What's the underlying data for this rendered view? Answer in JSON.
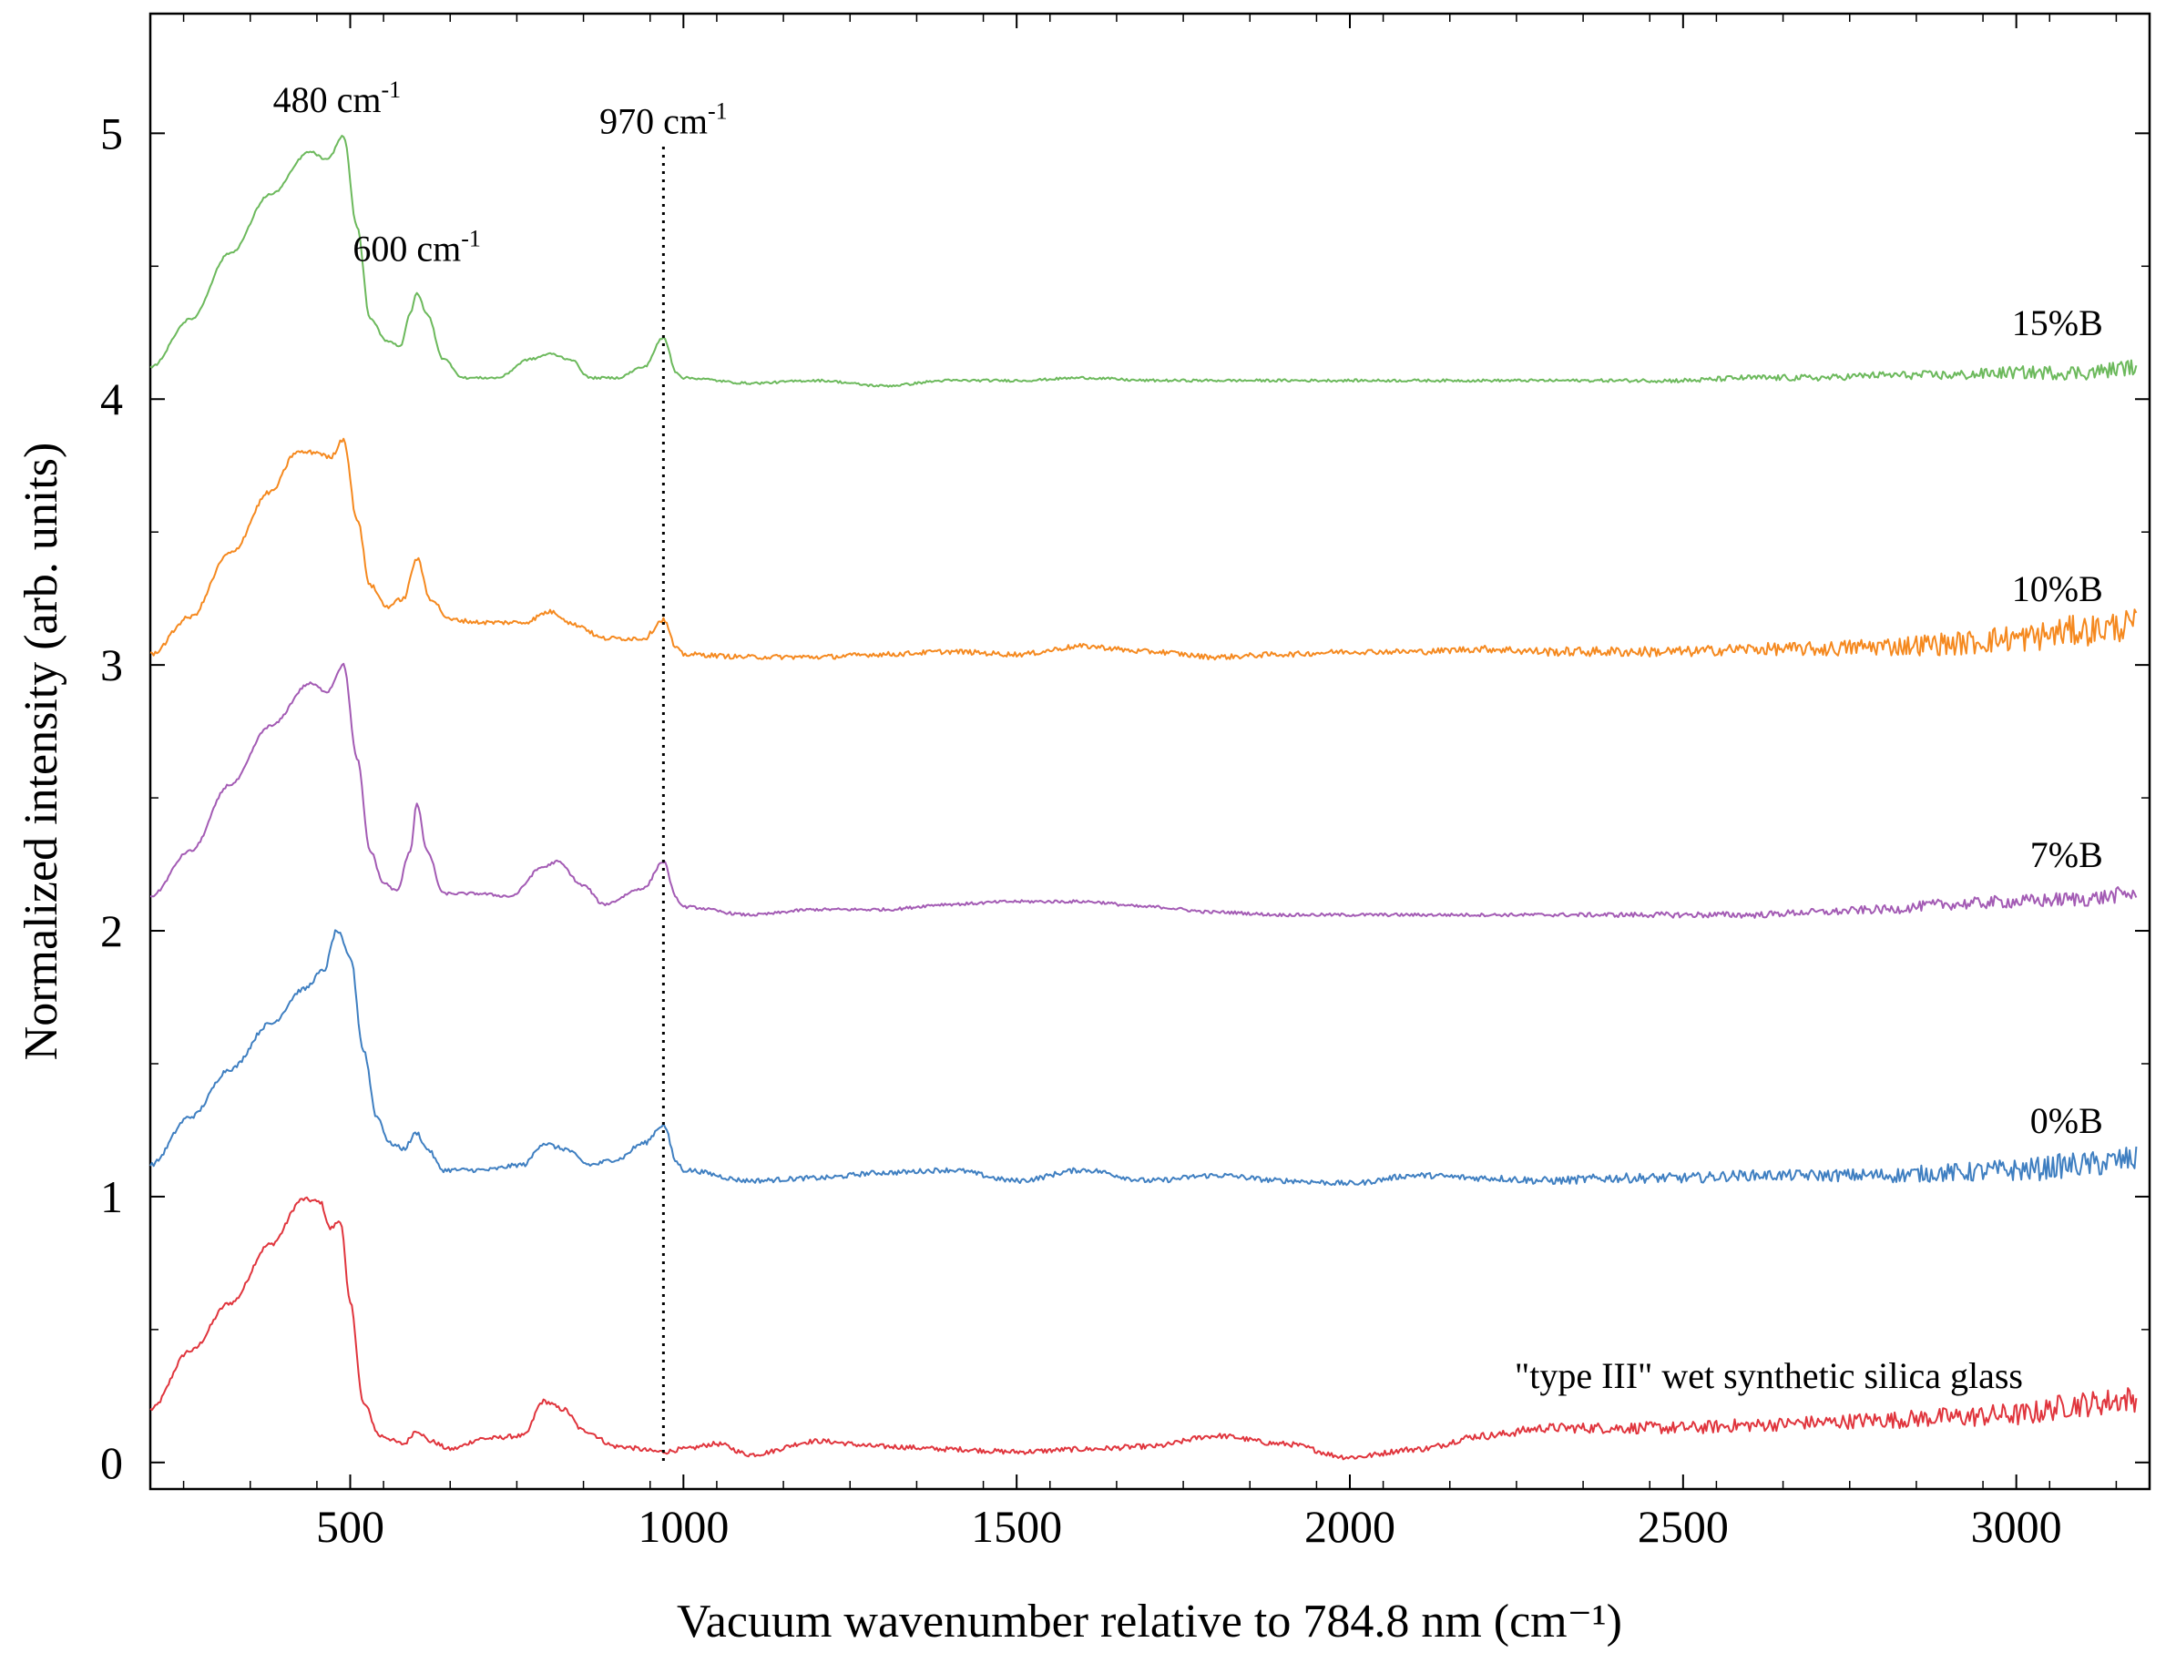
{
  "chart_data": {
    "type": "line",
    "title": "",
    "xlabel": "Vacuum wavenumber relative to 784.8 nm (cm⁻¹)",
    "ylabel": "Normalized intensity (arb. units)",
    "xlim": [
      200,
      3200
    ],
    "ylim": [
      -0.1,
      5.45
    ],
    "xticks": [
      500,
      1000,
      1500,
      2000,
      2500,
      3000
    ],
    "yticks": [
      0,
      1,
      2,
      3,
      4,
      5
    ],
    "xtick_labels": [
      "500",
      "1000",
      "1500",
      "2000",
      "2500",
      "3000"
    ],
    "ytick_labels": [
      "0",
      "1",
      "2",
      "3",
      "4",
      "5"
    ],
    "grid": false,
    "reference_line": {
      "x": 970,
      "style": "dotted",
      "y_range": [
        0.0,
        4.95
      ]
    },
    "annotations": [
      {
        "text": "480 cm",
        "sup": "-1",
        "x": 480,
        "y": 5.08
      },
      {
        "text": "600 cm",
        "sup": "-1",
        "x": 600,
        "y": 4.52
      },
      {
        "text": "970 cm",
        "sup": "-1",
        "x": 970,
        "y": 5.0
      }
    ],
    "series": [
      {
        "name": "\"type III\" wet synthetic silica glass",
        "color": "#e0353d",
        "offset": 0,
        "noise": [
          [
            200,
            0.008
          ],
          [
            2000,
            0.01
          ],
          [
            2600,
            0.025
          ],
          [
            3200,
            0.05
          ]
        ],
        "points": [
          [
            200,
            0.2
          ],
          [
            260,
            0.42
          ],
          [
            320,
            0.6
          ],
          [
            380,
            0.82
          ],
          [
            430,
            0.99
          ],
          [
            455,
            0.98
          ],
          [
            470,
            0.88
          ],
          [
            485,
            0.91
          ],
          [
            500,
            0.6
          ],
          [
            520,
            0.22
          ],
          [
            545,
            0.1
          ],
          [
            580,
            0.07
          ],
          [
            600,
            0.12
          ],
          [
            620,
            0.08
          ],
          [
            650,
            0.05
          ],
          [
            700,
            0.09
          ],
          [
            760,
            0.1
          ],
          [
            790,
            0.23
          ],
          [
            820,
            0.2
          ],
          [
            850,
            0.12
          ],
          [
            900,
            0.06
          ],
          [
            970,
            0.04
          ],
          [
            1000,
            0.05
          ],
          [
            1050,
            0.07
          ],
          [
            1100,
            0.03
          ],
          [
            1200,
            0.08
          ],
          [
            1300,
            0.06
          ],
          [
            1400,
            0.05
          ],
          [
            1500,
            0.04
          ],
          [
            1600,
            0.05
          ],
          [
            1700,
            0.06
          ],
          [
            1800,
            0.1
          ],
          [
            1900,
            0.07
          ],
          [
            2000,
            0.02
          ],
          [
            2100,
            0.05
          ],
          [
            2200,
            0.1
          ],
          [
            2300,
            0.13
          ],
          [
            2400,
            0.13
          ],
          [
            2500,
            0.13
          ],
          [
            2600,
            0.14
          ],
          [
            2700,
            0.15
          ],
          [
            2800,
            0.16
          ],
          [
            2900,
            0.17
          ],
          [
            3000,
            0.18
          ],
          [
            3100,
            0.22
          ],
          [
            3180,
            0.24
          ]
        ]
      },
      {
        "name": "0%B",
        "color": "#3f7fc1",
        "offset": 1,
        "noise": [
          [
            200,
            0.008
          ],
          [
            2000,
            0.01
          ],
          [
            2600,
            0.02
          ],
          [
            3200,
            0.05
          ]
        ],
        "points": [
          [
            200,
            0.12
          ],
          [
            260,
            0.3
          ],
          [
            320,
            0.48
          ],
          [
            380,
            0.65
          ],
          [
            430,
            0.78
          ],
          [
            460,
            0.85
          ],
          [
            480,
            1.0
          ],
          [
            500,
            0.9
          ],
          [
            520,
            0.55
          ],
          [
            540,
            0.3
          ],
          [
            560,
            0.2
          ],
          [
            580,
            0.18
          ],
          [
            600,
            0.24
          ],
          [
            615,
            0.18
          ],
          [
            640,
            0.1
          ],
          [
            700,
            0.1
          ],
          [
            760,
            0.12
          ],
          [
            790,
            0.2
          ],
          [
            820,
            0.18
          ],
          [
            860,
            0.12
          ],
          [
            900,
            0.14
          ],
          [
            940,
            0.2
          ],
          [
            970,
            0.27
          ],
          [
            990,
            0.13
          ],
          [
            1000,
            0.1
          ],
          [
            1100,
            0.06
          ],
          [
            1200,
            0.07
          ],
          [
            1300,
            0.09
          ],
          [
            1400,
            0.1
          ],
          [
            1500,
            0.06
          ],
          [
            1600,
            0.1
          ],
          [
            1700,
            0.06
          ],
          [
            1800,
            0.08
          ],
          [
            1900,
            0.06
          ],
          [
            2000,
            0.05
          ],
          [
            2100,
            0.08
          ],
          [
            2200,
            0.07
          ],
          [
            2300,
            0.06
          ],
          [
            2400,
            0.07
          ],
          [
            2500,
            0.07
          ],
          [
            2600,
            0.08
          ],
          [
            2700,
            0.08
          ],
          [
            2800,
            0.08
          ],
          [
            2900,
            0.09
          ],
          [
            3000,
            0.1
          ],
          [
            3100,
            0.12
          ],
          [
            3180,
            0.14
          ]
        ]
      },
      {
        "name": "7%B",
        "color": "#a35bb4",
        "offset": 2,
        "noise": [
          [
            200,
            0.005
          ],
          [
            2200,
            0.006
          ],
          [
            2600,
            0.012
          ],
          [
            3200,
            0.03
          ]
        ],
        "points": [
          [
            200,
            0.13
          ],
          [
            260,
            0.3
          ],
          [
            320,
            0.55
          ],
          [
            380,
            0.77
          ],
          [
            440,
            0.93
          ],
          [
            465,
            0.9
          ],
          [
            490,
            1.0
          ],
          [
            510,
            0.65
          ],
          [
            530,
            0.3
          ],
          [
            550,
            0.18
          ],
          [
            570,
            0.15
          ],
          [
            590,
            0.3
          ],
          [
            600,
            0.48
          ],
          [
            615,
            0.3
          ],
          [
            640,
            0.14
          ],
          [
            690,
            0.14
          ],
          [
            740,
            0.13
          ],
          [
            790,
            0.24
          ],
          [
            810,
            0.26
          ],
          [
            850,
            0.17
          ],
          [
            880,
            0.1
          ],
          [
            940,
            0.16
          ],
          [
            970,
            0.26
          ],
          [
            990,
            0.12
          ],
          [
            1000,
            0.09
          ],
          [
            1100,
            0.06
          ],
          [
            1200,
            0.08
          ],
          [
            1300,
            0.08
          ],
          [
            1400,
            0.1
          ],
          [
            1500,
            0.11
          ],
          [
            1600,
            0.11
          ],
          [
            1700,
            0.09
          ],
          [
            1800,
            0.07
          ],
          [
            1900,
            0.06
          ],
          [
            2000,
            0.06
          ],
          [
            2100,
            0.06
          ],
          [
            2200,
            0.06
          ],
          [
            2300,
            0.06
          ],
          [
            2400,
            0.06
          ],
          [
            2500,
            0.06
          ],
          [
            2600,
            0.06
          ],
          [
            2700,
            0.07
          ],
          [
            2800,
            0.08
          ],
          [
            2900,
            0.1
          ],
          [
            3000,
            0.11
          ],
          [
            3100,
            0.12
          ],
          [
            3180,
            0.14
          ]
        ]
      },
      {
        "name": "10%B",
        "color": "#f5891f",
        "offset": 3,
        "noise": [
          [
            200,
            0.008
          ],
          [
            2000,
            0.01
          ],
          [
            2500,
            0.02
          ],
          [
            3200,
            0.06
          ]
        ],
        "points": [
          [
            200,
            0.04
          ],
          [
            260,
            0.18
          ],
          [
            320,
            0.42
          ],
          [
            380,
            0.65
          ],
          [
            420,
            0.8
          ],
          [
            450,
            0.8
          ],
          [
            470,
            0.78
          ],
          [
            490,
            0.85
          ],
          [
            510,
            0.55
          ],
          [
            530,
            0.3
          ],
          [
            555,
            0.22
          ],
          [
            580,
            0.25
          ],
          [
            600,
            0.4
          ],
          [
            620,
            0.25
          ],
          [
            650,
            0.17
          ],
          [
            700,
            0.16
          ],
          [
            760,
            0.16
          ],
          [
            800,
            0.2
          ],
          [
            840,
            0.15
          ],
          [
            880,
            0.1
          ],
          [
            940,
            0.1
          ],
          [
            970,
            0.17
          ],
          [
            990,
            0.06
          ],
          [
            1000,
            0.04
          ],
          [
            1100,
            0.03
          ],
          [
            1200,
            0.03
          ],
          [
            1300,
            0.04
          ],
          [
            1400,
            0.05
          ],
          [
            1500,
            0.04
          ],
          [
            1600,
            0.07
          ],
          [
            1700,
            0.05
          ],
          [
            1800,
            0.03
          ],
          [
            1900,
            0.04
          ],
          [
            2000,
            0.05
          ],
          [
            2100,
            0.05
          ],
          [
            2200,
            0.06
          ],
          [
            2300,
            0.05
          ],
          [
            2400,
            0.05
          ],
          [
            2500,
            0.05
          ],
          [
            2600,
            0.06
          ],
          [
            2700,
            0.06
          ],
          [
            2800,
            0.07
          ],
          [
            2900,
            0.08
          ],
          [
            3000,
            0.1
          ],
          [
            3100,
            0.13
          ],
          [
            3180,
            0.15
          ]
        ]
      },
      {
        "name": "15%B",
        "color": "#6cb95c",
        "offset": 4,
        "noise": [
          [
            200,
            0.004
          ],
          [
            2300,
            0.005
          ],
          [
            2700,
            0.012
          ],
          [
            3200,
            0.03
          ]
        ],
        "points": [
          [
            200,
            0.12
          ],
          [
            260,
            0.3
          ],
          [
            320,
            0.55
          ],
          [
            380,
            0.77
          ],
          [
            440,
            0.93
          ],
          [
            465,
            0.9
          ],
          [
            490,
            0.99
          ],
          [
            510,
            0.65
          ],
          [
            530,
            0.3
          ],
          [
            555,
            0.22
          ],
          [
            575,
            0.2
          ],
          [
            590,
            0.32
          ],
          [
            600,
            0.4
          ],
          [
            615,
            0.32
          ],
          [
            640,
            0.15
          ],
          [
            670,
            0.08
          ],
          [
            720,
            0.08
          ],
          [
            770,
            0.15
          ],
          [
            800,
            0.17
          ],
          [
            830,
            0.15
          ],
          [
            860,
            0.08
          ],
          [
            900,
            0.08
          ],
          [
            940,
            0.12
          ],
          [
            970,
            0.23
          ],
          [
            990,
            0.1
          ],
          [
            1000,
            0.08
          ],
          [
            1100,
            0.06
          ],
          [
            1200,
            0.07
          ],
          [
            1300,
            0.05
          ],
          [
            1400,
            0.07
          ],
          [
            1500,
            0.07
          ],
          [
            1600,
            0.08
          ],
          [
            1700,
            0.07
          ],
          [
            1800,
            0.07
          ],
          [
            1900,
            0.07
          ],
          [
            2000,
            0.07
          ],
          [
            2100,
            0.07
          ],
          [
            2200,
            0.07
          ],
          [
            2300,
            0.07
          ],
          [
            2400,
            0.07
          ],
          [
            2500,
            0.07
          ],
          [
            2600,
            0.08
          ],
          [
            2700,
            0.08
          ],
          [
            2800,
            0.09
          ],
          [
            2900,
            0.09
          ],
          [
            3000,
            0.1
          ],
          [
            3100,
            0.1
          ],
          [
            3180,
            0.12
          ]
        ]
      }
    ],
    "series_labels": [
      {
        "text": "15%B",
        "anchor_x": 3130,
        "y": 4.24
      },
      {
        "text": "10%B",
        "anchor_x": 3130,
        "y": 3.24
      },
      {
        "text": "7%B",
        "anchor_x": 3130,
        "y": 2.24
      },
      {
        "text": "0%B",
        "anchor_x": 3130,
        "y": 1.24
      },
      {
        "text": "\"type III\" wet synthetic silica glass",
        "anchor_x": 3010,
        "y": 0.28
      }
    ]
  }
}
